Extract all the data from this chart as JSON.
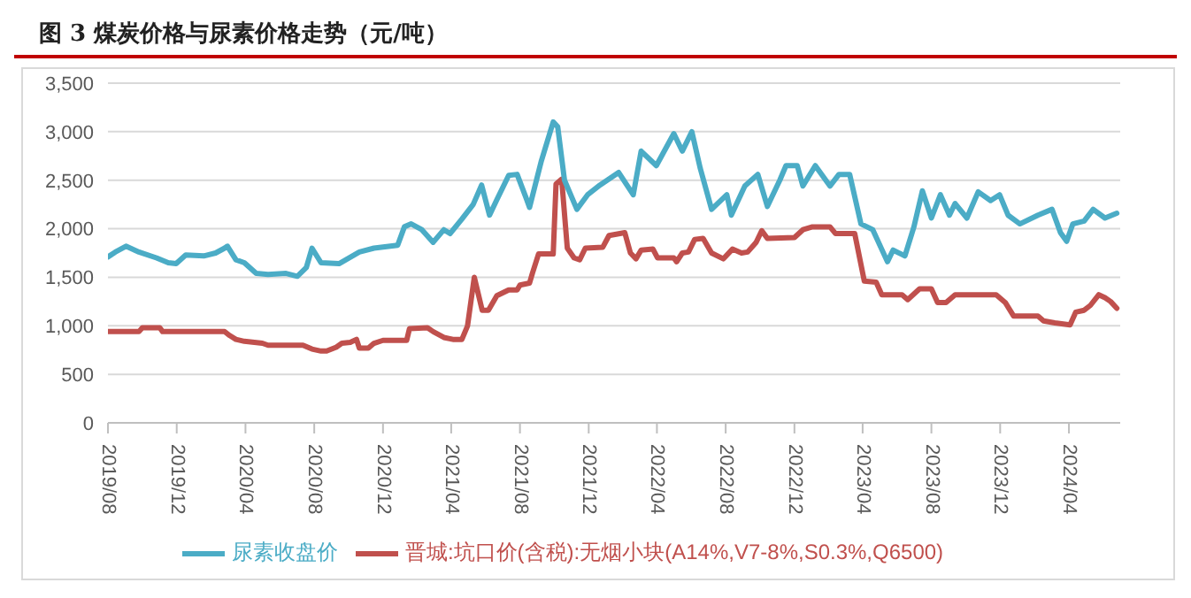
{
  "chart_data": {
    "type": "line",
    "title": "图 3 煤炭价格与尿素价格走势（元/吨）",
    "xlim": [
      "2019-08",
      "2024-07"
    ],
    "xticks": [
      {
        "value": "2019-08",
        "label": "2019/08"
      },
      {
        "value": "2019-12",
        "label": "2019/12"
      },
      {
        "value": "2020-04",
        "label": "2020/04"
      },
      {
        "value": "2020-08",
        "label": "2020/08"
      },
      {
        "value": "2020-12",
        "label": "2020/12"
      },
      {
        "value": "2021-04",
        "label": "2021/04"
      },
      {
        "value": "2021-08",
        "label": "2021/08"
      },
      {
        "value": "2021-12",
        "label": "2021/12"
      },
      {
        "value": "2022-04",
        "label": "2022/04"
      },
      {
        "value": "2022-08",
        "label": "2022/08"
      },
      {
        "value": "2022-12",
        "label": "2022/12"
      },
      {
        "value": "2023-04",
        "label": "2023/04"
      },
      {
        "value": "2023-08",
        "label": "2023/08"
      },
      {
        "value": "2023-12",
        "label": "2023/12"
      },
      {
        "value": "2024-04",
        "label": "2024/04"
      }
    ],
    "ylim": [
      0,
      3500
    ],
    "yticks": [
      0,
      500,
      {
        "value": 1000,
        "label": "1,000"
      },
      {
        "value": 1500,
        "label": "1,500"
      },
      {
        "value": 2000,
        "label": "2,000"
      },
      {
        "value": 2500,
        "label": "2,500"
      },
      {
        "value": 3000,
        "label": "3,000"
      },
      {
        "value": 3500,
        "label": "3,500"
      }
    ],
    "grid": "y",
    "legend": "bottom",
    "marker": "none",
    "line_style": "solid",
    "series": [
      {
        "name": "晋城:坑口价(含税):无烟小块(A14%,V7-8%,S0.3%,Q6500)",
        "color": "#c0504d",
        "x": [
          "2019-08-01",
          "2019-09-25",
          "2019-10-01",
          "2019-11-01",
          "2019-11-06",
          "2020-02-24",
          "2020-03-04",
          "2020-03-15",
          "2020-03-30",
          "2020-05-01",
          "2020-05-11",
          "2020-07-12",
          "2020-07-28",
          "2020-08-13",
          "2020-08-23",
          "2020-09-09",
          "2020-09-19",
          "2020-10-04",
          "2020-10-15",
          "2020-10-20",
          "2020-11-05",
          "2020-11-15",
          "2020-12-01",
          "2021-01-12",
          "2021-01-17",
          "2021-02-18",
          "2021-02-28",
          "2021-03-19",
          "2021-04-04",
          "2021-04-20",
          "2021-04-30",
          "2021-05-12",
          "2021-05-26",
          "2021-06-06",
          "2021-06-21",
          "2021-07-12",
          "2021-07-27",
          "2021-08-01",
          "2021-08-18",
          "2021-08-23",
          "2021-09-03",
          "2021-09-29",
          "2021-10-04",
          "2021-10-14",
          "2021-10-24",
          "2021-11-05",
          "2021-11-15",
          "2021-11-25",
          "2021-12-26",
          "2022-01-06",
          "2022-02-03",
          "2022-02-13",
          "2022-02-23",
          "2022-03-04",
          "2022-03-25",
          "2022-04-02",
          "2022-05-01",
          "2022-05-06",
          "2022-05-16",
          "2022-05-27",
          "2022-06-07",
          "2022-06-22",
          "2022-07-07",
          "2022-07-28",
          "2022-08-13",
          "2022-08-29",
          "2022-09-09",
          "2022-09-24",
          "2022-10-04",
          "2022-10-14",
          "2022-12-01",
          "2022-12-16",
          "2023-01-02",
          "2023-02-02",
          "2023-02-12",
          "2023-03-18",
          "2023-04-04",
          "2023-04-25",
          "2023-05-05",
          "2023-06-10",
          "2023-06-20",
          "2023-07-11",
          "2023-08-01",
          "2023-08-12",
          "2023-08-27",
          "2023-09-12",
          "2023-11-24",
          "2023-12-10",
          "2023-12-25",
          "2024-02-06",
          "2024-02-16",
          "2024-03-07",
          "2024-04-03",
          "2024-04-13",
          "2024-04-28",
          "2024-05-09",
          "2024-05-24",
          "2024-06-04",
          "2024-06-14",
          "2024-06-25"
        ],
        "values": [
          940,
          940,
          980,
          980,
          940,
          940,
          900,
          860,
          840,
          820,
          800,
          800,
          760,
          740,
          740,
          780,
          820,
          830,
          860,
          770,
          770,
          820,
          850,
          850,
          970,
          980,
          940,
          880,
          860,
          860,
          1000,
          1500,
          1160,
          1160,
          1310,
          1370,
          1370,
          1420,
          1440,
          1540,
          1740,
          1740,
          2460,
          2510,
          1800,
          1700,
          1680,
          1800,
          1810,
          1930,
          1960,
          1750,
          1690,
          1780,
          1790,
          1700,
          1700,
          1660,
          1750,
          1760,
          1890,
          1900,
          1750,
          1690,
          1790,
          1750,
          1760,
          1860,
          1980,
          1900,
          1910,
          1990,
          2020,
          2020,
          1950,
          1950,
          1460,
          1450,
          1320,
          1320,
          1270,
          1380,
          1380,
          1240,
          1240,
          1320,
          1320,
          1240,
          1100,
          1100,
          1050,
          1030,
          1010,
          1140,
          1160,
          1210,
          1320,
          1290,
          1250,
          1180
        ]
      },
      {
        "name": "尿素收盘价",
        "color": "#4bacc6",
        "x": [
          "2019-08-01",
          "2019-08-14",
          "2019-09-02",
          "2019-09-25",
          "2019-10-26",
          "2019-11-16",
          "2019-11-30",
          "2019-12-17",
          "2020-01-18",
          "2020-02-08",
          "2020-02-24",
          "2020-02-29",
          "2020-03-15",
          "2020-03-30",
          "2020-04-20",
          "2020-05-11",
          "2020-06-12",
          "2020-07-02",
          "2020-07-18",
          "2020-07-28",
          "2020-08-13",
          "2020-09-14",
          "2020-10-20",
          "2020-11-15",
          "2020-12-27",
          "2021-01-08",
          "2021-01-20",
          "2021-02-08",
          "2021-02-28",
          "2021-03-19",
          "2021-03-30",
          "2021-04-20",
          "2021-05-10",
          "2021-05-25",
          "2021-06-08",
          "2021-06-21",
          "2021-07-12",
          "2021-07-27",
          "2021-08-13",
          "2021-08-18",
          "2021-09-08",
          "2021-09-29",
          "2021-10-07",
          "2021-10-19",
          "2021-11-10",
          "2021-11-29",
          "2021-12-21",
          "2022-01-23",
          "2022-02-18",
          "2022-03-04",
          "2022-03-31",
          "2022-05-01",
          "2022-05-16",
          "2022-06-02",
          "2022-06-17",
          "2022-07-07",
          "2022-08-03",
          "2022-08-11",
          "2022-09-04",
          "2022-09-27",
          "2022-10-14",
          "2022-11-05",
          "2022-11-16",
          "2022-12-06",
          "2022-12-16",
          "2023-01-07",
          "2023-02-02",
          "2023-02-18",
          "2023-03-09",
          "2023-03-29",
          "2023-04-19",
          "2023-05-15",
          "2023-05-25",
          "2023-06-15",
          "2023-07-01",
          "2023-07-16",
          "2023-08-01",
          "2023-08-17",
          "2023-09-02",
          "2023-09-12",
          "2023-10-03",
          "2023-10-23",
          "2023-11-14",
          "2023-11-30",
          "2023-12-15",
          "2024-01-05",
          "2024-02-06",
          "2024-03-02",
          "2024-03-17",
          "2024-03-28",
          "2024-04-08",
          "2024-04-28",
          "2024-05-14",
          "2024-06-04",
          "2024-06-25"
        ],
        "values": [
          1710,
          1760,
          1820,
          1760,
          1700,
          1650,
          1640,
          1730,
          1720,
          1750,
          1800,
          1820,
          1680,
          1650,
          1540,
          1530,
          1540,
          1510,
          1600,
          1800,
          1650,
          1640,
          1760,
          1800,
          1830,
          2020,
          2050,
          1990,
          1860,
          1990,
          1950,
          2100,
          2250,
          2450,
          2140,
          2300,
          2550,
          2560,
          2300,
          2220,
          2700,
          3100,
          3050,
          2500,
          2200,
          2350,
          2450,
          2580,
          2350,
          2800,
          2650,
          2980,
          2800,
          3000,
          2620,
          2200,
          2350,
          2140,
          2440,
          2560,
          2230,
          2500,
          2650,
          2650,
          2440,
          2650,
          2440,
          2560,
          2560,
          2050,
          1990,
          1660,
          1780,
          1720,
          2020,
          2390,
          2110,
          2350,
          2140,
          2260,
          2110,
          2380,
          2290,
          2350,
          2140,
          2050,
          2140,
          2200,
          1960,
          1870,
          2050,
          2080,
          2200,
          2110,
          2160
        ]
      }
    ]
  }
}
